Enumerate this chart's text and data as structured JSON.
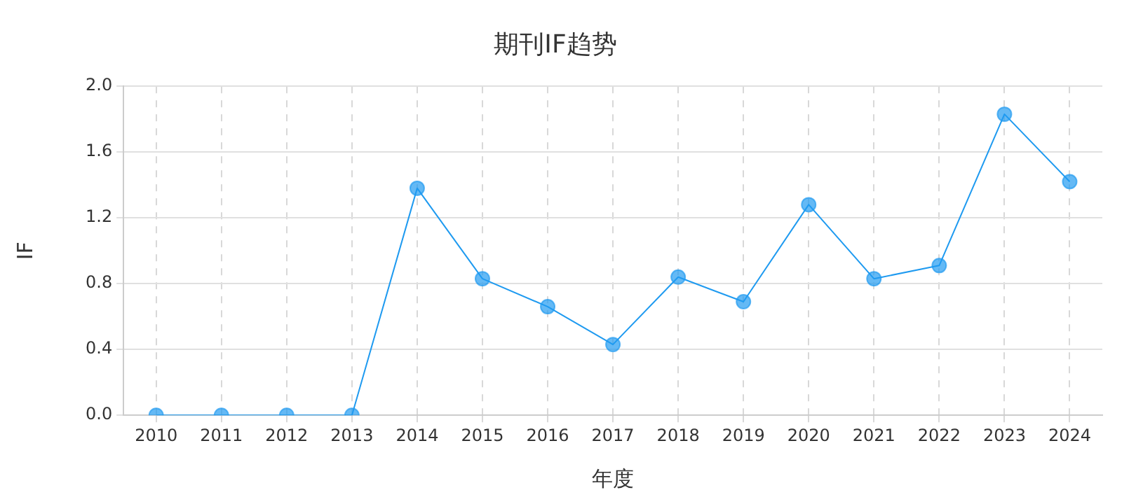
{
  "chart_data": {
    "type": "line",
    "title": "期刊IF趋势",
    "xlabel": "年度",
    "ylabel": "IF",
    "categories": [
      "2010",
      "2011",
      "2012",
      "2013",
      "2014",
      "2015",
      "2016",
      "2017",
      "2018",
      "2019",
      "2020",
      "2021",
      "2022",
      "2023",
      "2024"
    ],
    "series": [
      {
        "color": "#1e9af0",
        "values": [
          0,
          0,
          0,
          0,
          1.38,
          0.83,
          0.66,
          0.43,
          0.84,
          0.69,
          1.28,
          0.83,
          0.91,
          1.83,
          1.42
        ]
      }
    ],
    "ylim": [
      0,
      2
    ],
    "yticks": [
      {
        "value": 0,
        "label": "0.0"
      },
      {
        "value": 0.4,
        "label": "0.4"
      },
      {
        "value": 0.8,
        "label": "0.8"
      },
      {
        "value": 1.2,
        "label": "1.2"
      },
      {
        "value": 1.6,
        "label": "1.6"
      },
      {
        "value": 2,
        "label": "2.0"
      }
    ],
    "grid": true,
    "marker": "circle",
    "line_style": "solid",
    "legend": false
  }
}
